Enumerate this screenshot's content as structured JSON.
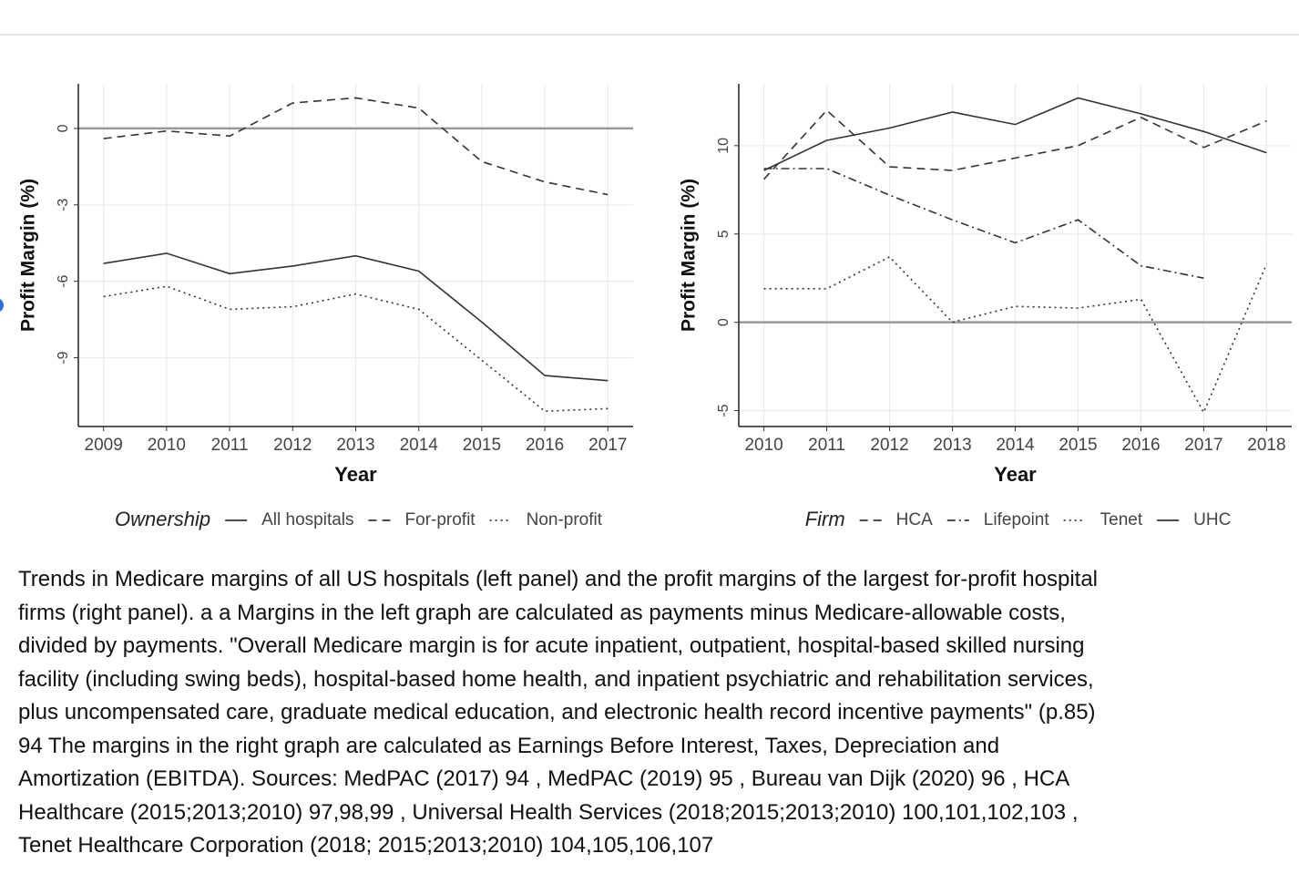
{
  "chart_data": [
    {
      "type": "line",
      "x_label": "Year",
      "y_label": "Profit Margin (%)",
      "legend_title": "Ownership",
      "x": [
        2009,
        2010,
        2011,
        2012,
        2013,
        2014,
        2015,
        2016,
        2017
      ],
      "xlim": [
        2008.6,
        2017.4
      ],
      "xticks": [
        2009,
        2010,
        2011,
        2012,
        2013,
        2014,
        2015,
        2016,
        2017
      ],
      "ylim": [
        -11.7,
        1.75
      ],
      "yticks": [
        0,
        -3,
        -6,
        -9
      ],
      "grid": true,
      "hline": 0,
      "series": [
        {
          "name": "All hospitals",
          "color": "#333333",
          "dash": "solid",
          "values": [
            -5.3,
            -4.9,
            -5.7,
            -5.4,
            -5.0,
            -5.6,
            -7.6,
            -9.7,
            -9.9
          ]
        },
        {
          "name": "For-profit",
          "color": "#333333",
          "dash": "dashed",
          "values": [
            -0.4,
            -0.1,
            -0.3,
            1.0,
            1.2,
            0.8,
            -1.3,
            -2.1,
            -2.6
          ]
        },
        {
          "name": "Non-profit",
          "color": "#333333",
          "dash": "dotted",
          "values": [
            -6.6,
            -6.2,
            -7.1,
            -7.0,
            -6.5,
            -7.1,
            -9.1,
            -11.1,
            -11.0
          ]
        }
      ]
    },
    {
      "type": "line",
      "x_label": "Year",
      "y_label": "Profit Margin (%)",
      "legend_title": "Firm",
      "x": [
        2010,
        2011,
        2012,
        2013,
        2014,
        2015,
        2016,
        2017,
        2018
      ],
      "xlim": [
        2009.6,
        2018.4
      ],
      "xticks": [
        2010,
        2011,
        2012,
        2013,
        2014,
        2015,
        2016,
        2017,
        2018
      ],
      "ylim": [
        -5.9,
        13.5
      ],
      "yticks": [
        10,
        5,
        0,
        -5
      ],
      "grid": true,
      "hline": 0,
      "series": [
        {
          "name": "HCA",
          "color": "#333333",
          "dash": "dashed",
          "values": [
            8.1,
            12.0,
            8.8,
            8.6,
            9.3,
            10.0,
            11.6,
            9.9,
            11.4
          ]
        },
        {
          "name": "Lifepoint",
          "color": "#333333",
          "dash": "dashdot",
          "values": [
            8.7,
            8.7,
            7.2,
            5.8,
            4.5,
            5.8,
            3.2,
            2.5,
            null
          ]
        },
        {
          "name": "Tenet",
          "color": "#333333",
          "dash": "dotted",
          "values": [
            1.9,
            1.9,
            3.7,
            0.0,
            0.9,
            0.8,
            1.3,
            -5.1,
            3.3
          ]
        },
        {
          "name": "UHC",
          "color": "#333333",
          "dash": "solid",
          "values": [
            8.6,
            10.3,
            11.0,
            11.9,
            11.2,
            12.7,
            11.8,
            10.8,
            9.6
          ]
        }
      ]
    }
  ],
  "caption": {
    "lines": [
      "Trends in Medicare margins of all US hospitals (left panel) and the profit margins of the largest for-profit hospital",
      "firms (right panel). a a Margins in the left graph are calculated as payments minus Medicare-allowable costs,",
      "divided by payments. \"Overall Medicare margin is for acute inpatient, outpatient, hospital-based skilled nursing",
      "facility (including swing beds), hospital-based home health, and inpatient psychiatric and rehabilitation services,",
      "plus uncompensated care, graduate medical education, and electronic health record incentive payments\" (p.85)",
      "94 The margins in the right graph are calculated as Earnings Before Interest, Taxes, Depreciation and",
      "Amortization (EBITDA). Sources: MedPAC (2017) 94 , MedPAC (2019) 95 , Bureau van Dijk (2020) 96 , HCA",
      "Healthcare (2015;2013;2010) 97,98,99 , Universal Health Services (2018;2015;2013;2010) 100,101,102,103 ,",
      "Tenet Healthcare Corporation (2018; 2015;2013;2010) 104,105,106,107"
    ]
  }
}
